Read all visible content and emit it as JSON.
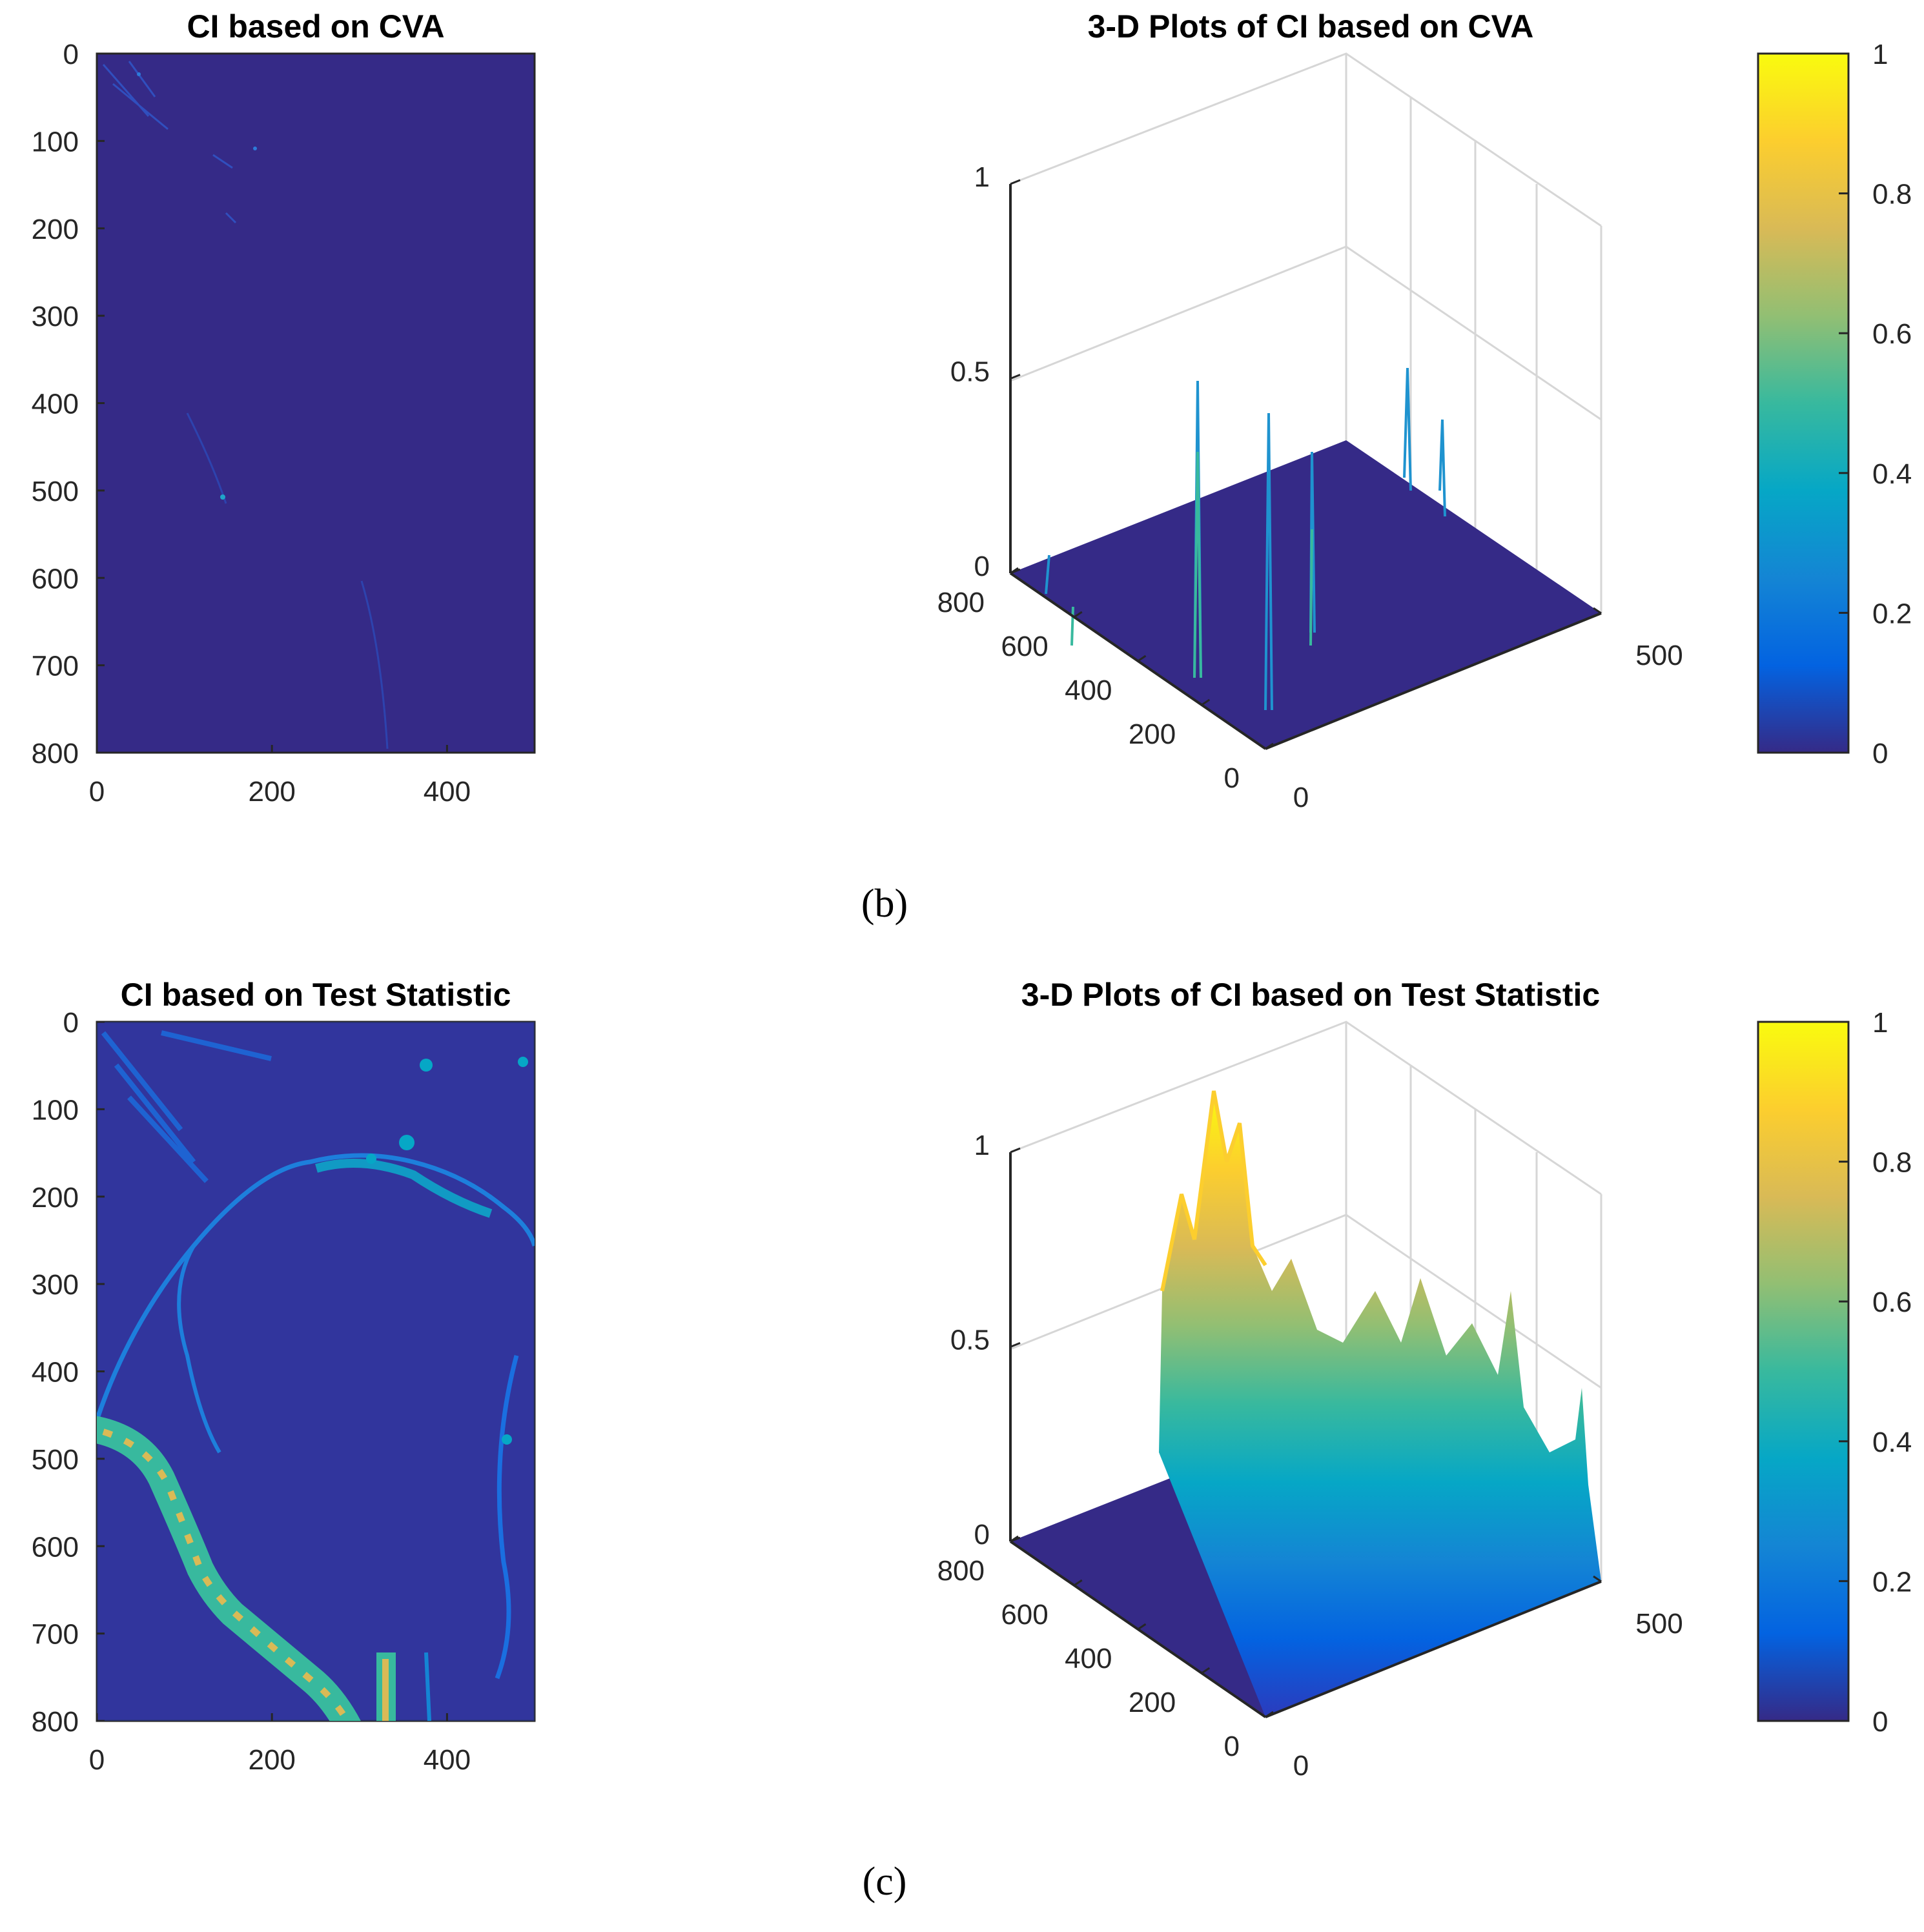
{
  "colors": {
    "parula": [
      "#352a87",
      "#0363e1",
      "#1485d4",
      "#06a7c6",
      "#38b99e",
      "#92bf73",
      "#d9ba56",
      "#fcce2e",
      "#f9fb0e"
    ],
    "background": "#352a87"
  },
  "captions": {
    "b": "(b)",
    "c": "(c)"
  },
  "chart_data": [
    {
      "type": "heatmap",
      "panel": "b-left",
      "title": "CI based on CVA",
      "xlim": [
        0,
        500
      ],
      "ylim": [
        800,
        0
      ],
      "xticks": [
        "0",
        "200",
        "400"
      ],
      "yticks": [
        "0",
        "100",
        "200",
        "300",
        "400",
        "500",
        "600",
        "700",
        "800"
      ],
      "value_range": [
        0,
        1
      ],
      "grid": false
    },
    {
      "type": "surface",
      "panel": "b-right",
      "title": "3-D Plots of CI based on CVA",
      "x_ticks": [
        "0",
        "500"
      ],
      "y_ticks": [
        "0",
        "200",
        "400",
        "600",
        "800"
      ],
      "z_ticks": [
        "0",
        "0.5",
        "1"
      ],
      "zlim": [
        0,
        1
      ],
      "grid": true,
      "colorbar": {
        "ticks": [
          "0",
          "0.2",
          "0.4",
          "0.6",
          "0.8",
          "1"
        ],
        "range": [
          0,
          1
        ]
      }
    },
    {
      "type": "heatmap",
      "panel": "c-left",
      "title": "CI based on Test Statistic",
      "xlim": [
        0,
        500
      ],
      "ylim": [
        800,
        0
      ],
      "xticks": [
        "0",
        "200",
        "400"
      ],
      "yticks": [
        "0",
        "100",
        "200",
        "300",
        "400",
        "500",
        "600",
        "700",
        "800"
      ],
      "value_range": [
        0,
        1
      ],
      "grid": false
    },
    {
      "type": "surface",
      "panel": "c-right",
      "title": "3-D Plots of CI based on Test Statistic",
      "x_ticks": [
        "0",
        "500"
      ],
      "y_ticks": [
        "0",
        "200",
        "400",
        "600",
        "800"
      ],
      "z_ticks": [
        "0",
        "0.5",
        "1"
      ],
      "zlim": [
        0,
        1
      ],
      "grid": true,
      "colorbar": {
        "ticks": [
          "0",
          "0.2",
          "0.4",
          "0.6",
          "0.8",
          "1"
        ],
        "range": [
          0,
          1
        ]
      }
    }
  ]
}
